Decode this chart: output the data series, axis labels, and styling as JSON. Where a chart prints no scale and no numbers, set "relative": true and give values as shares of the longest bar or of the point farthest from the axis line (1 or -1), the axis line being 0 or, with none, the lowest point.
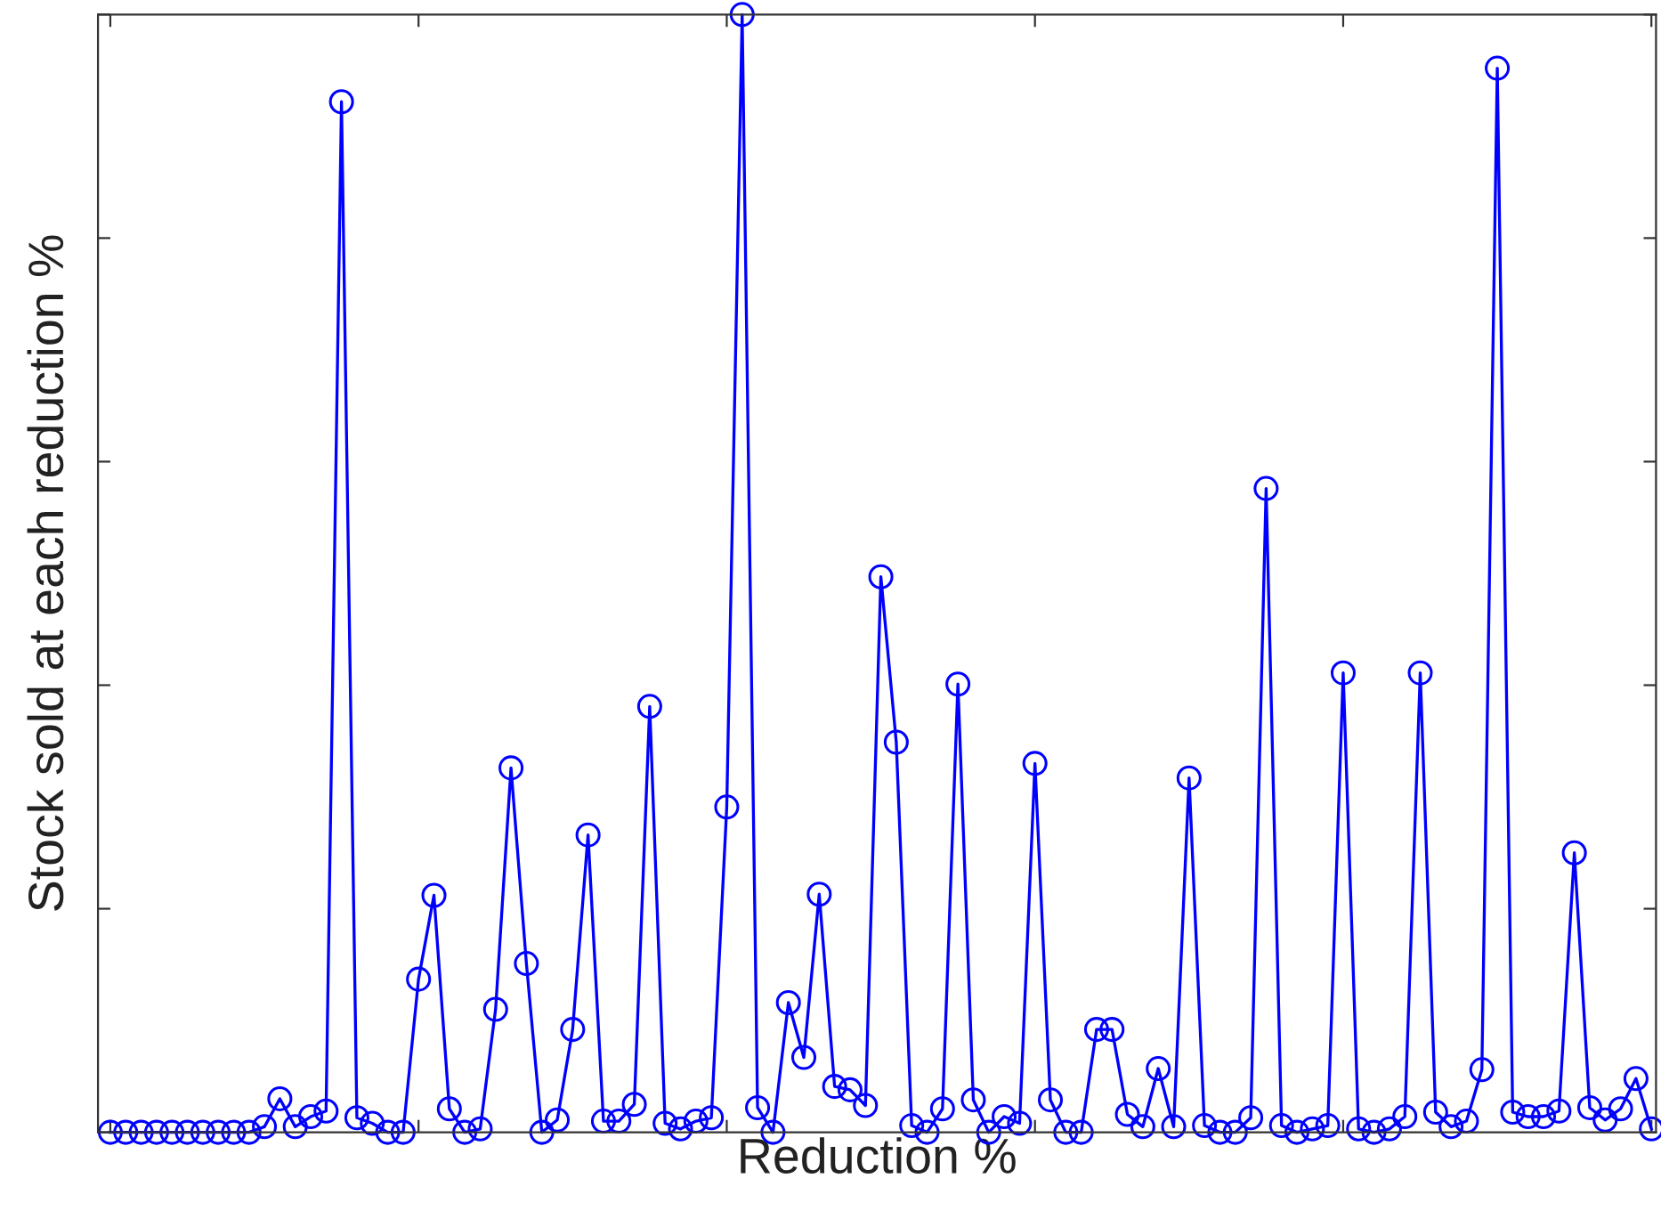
{
  "chart_data": {
    "type": "line",
    "relative": true,
    "xlabel": "Reduction %",
    "ylabel": "Stock sold at each reduction %",
    "categories": [
      null,
      null,
      null,
      null,
      null,
      null,
      null,
      null,
      null,
      null,
      null,
      null,
      null,
      null,
      null,
      null,
      null,
      null,
      null,
      null,
      null,
      null,
      null,
      null,
      null,
      null,
      null,
      null,
      null,
      null,
      null,
      null,
      null,
      null,
      null,
      null,
      null,
      null,
      null,
      null,
      null,
      null,
      null,
      null,
      null,
      null,
      null,
      null,
      null,
      null,
      null,
      null,
      null,
      null,
      null,
      null,
      null,
      null,
      null,
      null,
      null,
      null,
      null,
      null,
      null,
      null,
      null,
      null,
      null,
      null,
      null,
      null,
      null,
      null,
      null,
      null,
      null,
      null,
      null,
      null,
      null,
      null,
      null,
      null,
      null,
      null,
      null,
      null,
      null,
      null,
      null,
      null,
      null,
      null,
      null,
      null,
      null,
      null,
      null,
      null,
      null
    ],
    "series": [
      {
        "color": "#0000ff",
        "values": [
          0,
          0,
          0,
          0,
          0,
          0,
          0,
          0,
          0,
          0,
          0.005,
          0.03,
          0.005,
          0.014,
          0.019,
          0.922,
          0.013,
          0.008,
          0,
          0,
          0.137,
          0.212,
          0.021,
          0,
          0.003,
          0.11,
          0.326,
          0.151,
          0,
          0.011,
          0.092,
          0.266,
          0.01,
          0.01,
          0.025,
          0.381,
          0.008,
          0.003,
          0.01,
          0.013,
          0.291,
          1,
          0.022,
          0,
          0.116,
          0.067,
          0.213,
          0.041,
          0.038,
          0.024,
          0.497,
          0.349,
          0.006,
          0,
          0.021,
          0.401,
          0.029,
          0,
          0.014,
          0.008,
          0.33,
          0.029,
          0,
          0,
          0.092,
          0.092,
          0.016,
          0.005,
          0.057,
          0.005,
          0.317,
          0.006,
          0,
          0,
          0.013,
          0.576,
          0.006,
          0,
          0.003,
          0.006,
          0.411,
          0.003,
          0,
          0.003,
          0.014,
          0.411,
          0.018,
          0.005,
          0.01,
          0.056,
          0.952,
          0.018,
          0.014,
          0.014,
          0.019,
          0.25,
          0.022,
          0.011,
          0.021,
          0.048,
          0.003
        ]
      }
    ],
    "marker": "circle",
    "line_style": "solid",
    "tick_labels": false,
    "grid": false,
    "legend": false
  }
}
